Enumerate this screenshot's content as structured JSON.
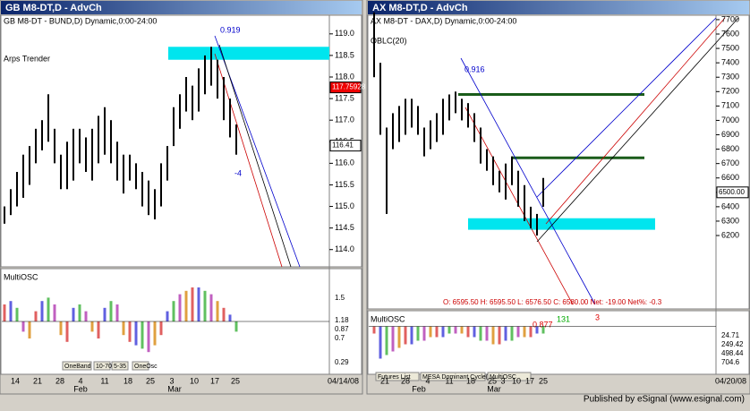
{
  "footer": "Published by eSignal (www.esignal.com)",
  "windows": [
    {
      "title": "GB M8-DT,D - AdvCh",
      "header": "GB M8-DT - BUND,D) Dynamic,0:00-24:00",
      "study": "Arps Trender",
      "ylim": [
        113.6,
        119.37
      ],
      "yticks": [
        {
          "value": 114,
          "label": "114.0"
        },
        114.5,
        {
          "value": 115,
          "label": "115.0"
        },
        115.5,
        {
          "value": 116,
          "label": "116.0"
        },
        116.5,
        {
          "value": 117,
          "label": "117.0"
        },
        117.5,
        {
          "value": 118,
          "label": "118.0"
        },
        118.5,
        {
          "value": 119,
          "label": "119.0"
        }
      ],
      "bars": [
        [
          114.6,
          115.0
        ],
        [
          114.8,
          115.4
        ],
        [
          115.0,
          115.8
        ],
        [
          115.2,
          116.2
        ],
        [
          115.5,
          116.4
        ],
        [
          116.0,
          116.8
        ],
        [
          116.3,
          117.0
        ],
        [
          116.5,
          117.6
        ],
        [
          116.0,
          116.8
        ],
        [
          115.4,
          116.2
        ],
        [
          115.4,
          116.5
        ],
        [
          115.6,
          116.8
        ],
        [
          116.0,
          116.8
        ],
        [
          115.8,
          116.6
        ],
        [
          115.6,
          116.8
        ],
        [
          116.0,
          117.1
        ],
        [
          116.2,
          117.3
        ],
        [
          116.0,
          117.0
        ],
        [
          115.6,
          116.5
        ],
        [
          115.3,
          116.2
        ],
        [
          115.6,
          116.2
        ],
        [
          115.4,
          116.0
        ],
        [
          115.0,
          115.8
        ],
        [
          114.8,
          115.6
        ],
        [
          114.7,
          115.4
        ],
        [
          115.0,
          116.0
        ],
        [
          115.6,
          116.4
        ],
        [
          116.4,
          117.3
        ],
        [
          116.8,
          117.6
        ],
        [
          117.2,
          118.0
        ],
        [
          117.0,
          117.8
        ],
        [
          117.2,
          118.2
        ],
        [
          117.6,
          118.5
        ],
        [
          117.8,
          118.7
        ],
        [
          117.5,
          118.4
        ],
        [
          117.0,
          118.0
        ],
        [
          116.6,
          117.5
        ],
        [
          116.2,
          116.9
        ]
      ],
      "zone": [
        118.4,
        118.7
      ],
      "levels": [],
      "price_tags": [
        {
          "value": 117.75928,
          "label": "117.75928"
        },
        {
          "value": 116.41,
          "label": "116.41"
        }
      ],
      "annotations": [
        "0.919",
        "-4"
      ],
      "osc_label": "MultiOSC",
      "osc_values": [
        0.5,
        0.6,
        0.4,
        -0.3,
        -0.5,
        0.3,
        0.6,
        0.7,
        0.5,
        -0.4,
        -0.6,
        0.4,
        0.5,
        0.3,
        -0.3,
        -0.5,
        0.4,
        0.6,
        0.5,
        -0.4,
        -0.6,
        -0.7,
        -0.8,
        -0.9,
        -0.7,
        -0.4,
        0.3,
        0.6,
        0.8,
        0.9,
        1.0,
        1.0,
        0.9,
        0.8,
        0.6,
        0.4,
        0.2,
        -0.3
      ],
      "osc_ticks": [
        "1.5",
        "1.18",
        "0.87",
        "0.7",
        "0.29"
      ],
      "tabs": [
        "OneBand",
        "10-70",
        "5-35",
        "OneOsc"
      ],
      "dates": [
        "14",
        "21",
        "28",
        "4",
        "11",
        "18",
        "25",
        "3",
        "10",
        "17",
        "25"
      ],
      "months": [
        "Feb",
        "Mar"
      ],
      "end_date": "04/14/08"
    },
    {
      "title": "AX M8-DT,D - AdvCh",
      "header": "AX M8-DT - DAX,D) Dynamic,0:00-24:00",
      "study": "OBLC(20)",
      "ylim": [
        5690,
        7712
      ],
      "yticks": [
        6200,
        6300,
        6400,
        6500,
        6600,
        6700,
        6800,
        6900,
        7000,
        7100,
        7200,
        7300,
        7400,
        7500,
        7600,
        7700
      ],
      "bars": [
        [
          7300,
          7750
        ],
        [
          6900,
          7400
        ],
        [
          6350,
          6950
        ],
        [
          6800,
          7050
        ],
        [
          6850,
          7100
        ],
        [
          6900,
          7150
        ],
        [
          6950,
          7150
        ],
        [
          6900,
          7100
        ],
        [
          6750,
          6950
        ],
        [
          6800,
          7000
        ],
        [
          6850,
          7050
        ],
        [
          6900,
          7150
        ],
        [
          7000,
          7180
        ],
        [
          7050,
          7200
        ],
        [
          7000,
          7150
        ],
        [
          6950,
          7120
        ],
        [
          6850,
          7050
        ],
        [
          6700,
          6950
        ],
        [
          6650,
          6800
        ],
        [
          6550,
          6750
        ],
        [
          6500,
          6650
        ],
        [
          6450,
          6700
        ],
        [
          6550,
          6750
        ],
        [
          6400,
          6650
        ],
        [
          6300,
          6550
        ],
        [
          6250,
          6400
        ],
        [
          6200,
          6350
        ],
        [
          6400,
          6600
        ]
      ],
      "zone": [
        6240,
        6320
      ],
      "levels": [
        7180,
        6740
      ],
      "price_tags": [
        {
          "value": 6500,
          "label": "6500.00"
        }
      ],
      "annotations": [
        "0.916",
        "0.877",
        "131",
        "3"
      ],
      "quote": "O: 6595.50   H: 6595.50   L: 6576.50   C: 6580.00   Net: -19.00   Net%: -0.3",
      "osc_label": "MultiOSC",
      "osc_values": [
        -0.2,
        -0.9,
        -0.8,
        -0.7,
        -0.6,
        -0.5,
        -0.5,
        -0.4,
        -0.4,
        -0.3,
        -0.3,
        -0.3,
        -0.2,
        -0.2,
        -0.2,
        -0.3,
        -0.3,
        -0.4,
        -0.4,
        -0.5,
        -0.5,
        -0.4,
        -0.4,
        -0.3,
        -0.3,
        -0.3,
        -0.2,
        -0.2
      ],
      "osc_ticks": [
        "24.71",
        "249.42",
        "498.44",
        "704.6"
      ],
      "tabs": [
        "Futures List",
        "MESA Dominant Cycle(C)",
        "MultiOSC"
      ],
      "dates": [
        "21",
        "28",
        "4",
        "11",
        "18",
        "25",
        "3",
        "10",
        "17",
        "25"
      ],
      "months": [
        "Feb",
        "Mar"
      ],
      "end_date": "04/20/08"
    }
  ]
}
